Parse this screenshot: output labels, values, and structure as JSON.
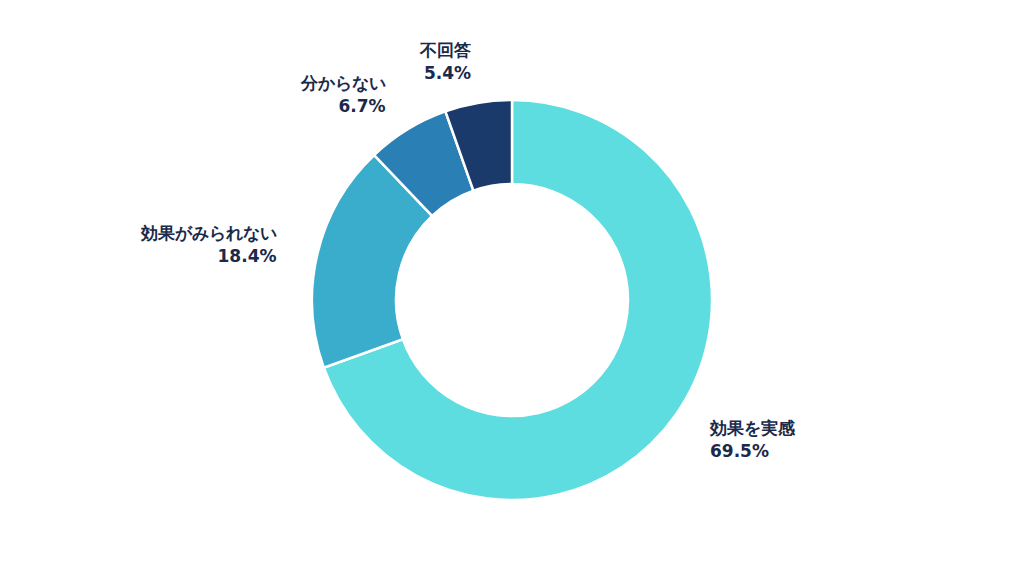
{
  "chart_data": {
    "type": "pie",
    "categories": [
      "効果を実感",
      "効果がみられない",
      "分からない",
      "不回答"
    ],
    "values": [
      69.5,
      18.4,
      6.7,
      5.4
    ],
    "value_labels": [
      "69.5%",
      "18.4%",
      "6.7%",
      "5.4%"
    ],
    "colors": [
      "#5DDDE0",
      "#3AACCC",
      "#2A7FB5",
      "#1A3A6B"
    ],
    "data_labels": true
  }
}
